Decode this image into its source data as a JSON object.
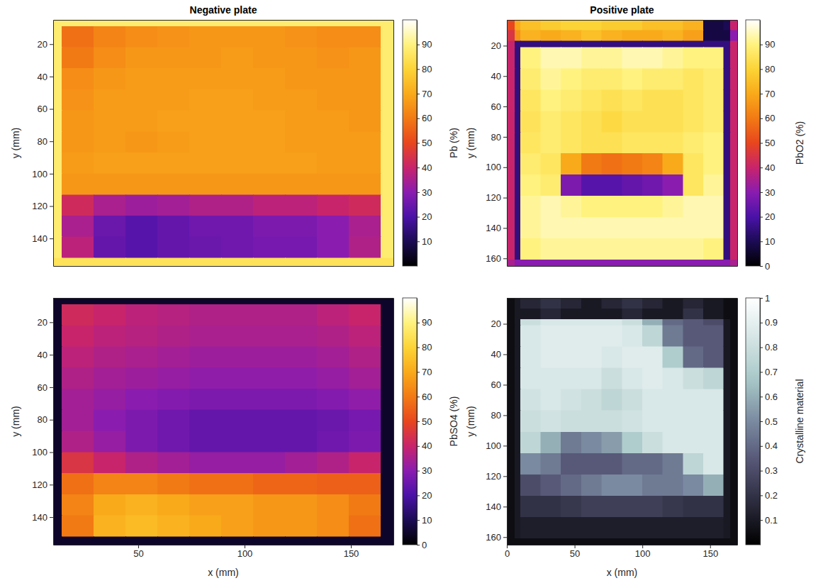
{
  "chart_data": [
    {
      "type": "heatmap",
      "title": "Negative plate",
      "y_label": "y (mm)",
      "tick_labels": "y",
      "color": "hot",
      "xlim": [
        10,
        170
      ],
      "ylim": [
        5,
        157
      ],
      "yticks": [
        20,
        40,
        60,
        80,
        100,
        120,
        140
      ],
      "x_edges": [
        10,
        14,
        29,
        44,
        59,
        74,
        89,
        104,
        119,
        134,
        149,
        164,
        170
      ],
      "y_edges": [
        5,
        9,
        22,
        35,
        48,
        61,
        74,
        87,
        100,
        113,
        126,
        139,
        152,
        157
      ],
      "z": [
        [
          88,
          88,
          88,
          88,
          88,
          88,
          88,
          88,
          88,
          88,
          88,
          88
        ],
        [
          88,
          58,
          62,
          64,
          65,
          66,
          66,
          66,
          65,
          64,
          64,
          88
        ],
        [
          88,
          60,
          64,
          66,
          66,
          66,
          67,
          66,
          66,
          65,
          66,
          88
        ],
        [
          88,
          64,
          66,
          67,
          67,
          67,
          67,
          67,
          66,
          66,
          66,
          88
        ],
        [
          88,
          65,
          67,
          67,
          67,
          68,
          68,
          67,
          67,
          66,
          66,
          88
        ],
        [
          88,
          66,
          67,
          67,
          68,
          68,
          68,
          68,
          67,
          67,
          66,
          88
        ],
        [
          88,
          66,
          67,
          66,
          67,
          68,
          68,
          68,
          67,
          67,
          67,
          88
        ],
        [
          88,
          67,
          68,
          68,
          68,
          68,
          68,
          68,
          68,
          67,
          67,
          88
        ],
        [
          88,
          66,
          66,
          66,
          66,
          66,
          66,
          66,
          66,
          66,
          66,
          88
        ],
        [
          88,
          42,
          35,
          33,
          34,
          36,
          36,
          38,
          38,
          40,
          42,
          88
        ],
        [
          88,
          35,
          25,
          22,
          24,
          26,
          26,
          28,
          28,
          30,
          35,
          88
        ],
        [
          88,
          38,
          24,
          22,
          24,
          25,
          26,
          27,
          27,
          30,
          36,
          88
        ],
        [
          85,
          85,
          85,
          85,
          85,
          85,
          85,
          85,
          85,
          85,
          85,
          85
        ]
      ],
      "colorbar": {
        "label": "Pb (%)",
        "range": [
          0,
          100
        ],
        "ticks": [
          10,
          20,
          30,
          40,
          50,
          60,
          70,
          80,
          90
        ]
      }
    },
    {
      "type": "heatmap",
      "title": "Positive plate",
      "y_label": "y (mm)",
      "tick_labels": "y",
      "color": "hot",
      "xlim": [
        0,
        170
      ],
      "ylim": [
        3,
        165
      ],
      "yticks": [
        20,
        40,
        60,
        80,
        100,
        120,
        140,
        160
      ],
      "x_edges": [
        0,
        6,
        10,
        25,
        40,
        55,
        70,
        85,
        100,
        115,
        130,
        145,
        160,
        165,
        170
      ],
      "y_edges": [
        3,
        10,
        17,
        21,
        35,
        49,
        63,
        77,
        91,
        105,
        119,
        133,
        147,
        161,
        165
      ],
      "z": [
        [
          50,
          70,
          75,
          78,
          80,
          80,
          78,
          78,
          75,
          75,
          72,
          8,
          10,
          40
        ],
        [
          45,
          65,
          72,
          70,
          72,
          75,
          72,
          70,
          70,
          72,
          68,
          8,
          8,
          30
        ],
        [
          40,
          15,
          15,
          15,
          15,
          15,
          15,
          15,
          15,
          15,
          15,
          15,
          15,
          40
        ],
        [
          40,
          15,
          90,
          94,
          94,
          92,
          92,
          94,
          94,
          92,
          90,
          90,
          15,
          40
        ],
        [
          40,
          15,
          88,
          92,
          90,
          88,
          88,
          90,
          88,
          88,
          86,
          88,
          15,
          40
        ],
        [
          40,
          15,
          86,
          90,
          88,
          86,
          84,
          86,
          84,
          84,
          86,
          88,
          15,
          40
        ],
        [
          40,
          15,
          85,
          88,
          86,
          84,
          82,
          84,
          84,
          84,
          86,
          88,
          15,
          40
        ],
        [
          40,
          15,
          86,
          88,
          86,
          84,
          84,
          86,
          86,
          86,
          88,
          90,
          15,
          40
        ],
        [
          40,
          15,
          88,
          86,
          70,
          60,
          58,
          60,
          62,
          70,
          86,
          90,
          15,
          40
        ],
        [
          40,
          15,
          90,
          88,
          28,
          22,
          22,
          24,
          26,
          30,
          86,
          92,
          15,
          40
        ],
        [
          40,
          15,
          92,
          94,
          92,
          90,
          90,
          90,
          90,
          92,
          94,
          94,
          15,
          40
        ],
        [
          40,
          15,
          92,
          94,
          94,
          94,
          94,
          94,
          94,
          94,
          94,
          94,
          15,
          40
        ],
        [
          40,
          15,
          90,
          92,
          92,
          92,
          92,
          92,
          92,
          92,
          92,
          90,
          15,
          40
        ],
        [
          35,
          30,
          30,
          30,
          30,
          30,
          30,
          30,
          30,
          30,
          30,
          30,
          30,
          35
        ]
      ],
      "colorbar": {
        "label": "PbO2 (%)",
        "range": [
          0,
          100
        ],
        "ticks": [
          0,
          10,
          20,
          30,
          40,
          50,
          60,
          70,
          80,
          90
        ]
      }
    },
    {
      "type": "heatmap",
      "x_label": "x (mm)",
      "y_label": "y (mm)",
      "color": "hot",
      "xlim": [
        10,
        170
      ],
      "ylim": [
        5,
        157
      ],
      "xticks": [
        50,
        100,
        150
      ],
      "yticks": [
        20,
        40,
        60,
        80,
        100,
        120,
        140
      ],
      "x_edges": [
        10,
        14,
        29,
        44,
        59,
        74,
        89,
        104,
        119,
        134,
        149,
        164,
        170
      ],
      "y_edges": [
        5,
        9,
        22,
        35,
        48,
        61,
        74,
        87,
        100,
        113,
        126,
        139,
        152,
        157
      ],
      "z": [
        [
          5,
          5,
          5,
          5,
          5,
          5,
          5,
          5,
          5,
          5,
          5,
          5
        ],
        [
          5,
          42,
          40,
          38,
          37,
          36,
          36,
          36,
          36,
          38,
          40,
          5
        ],
        [
          5,
          40,
          38,
          37,
          36,
          35,
          35,
          35,
          35,
          36,
          38,
          5
        ],
        [
          5,
          38,
          36,
          35,
          34,
          33,
          33,
          33,
          33,
          34,
          36,
          5
        ],
        [
          5,
          36,
          34,
          33,
          32,
          31,
          31,
          31,
          31,
          32,
          34,
          5
        ],
        [
          5,
          34,
          32,
          30,
          29,
          28,
          28,
          28,
          28,
          29,
          31,
          5
        ],
        [
          5,
          34,
          30,
          28,
          26,
          24,
          24,
          24,
          24,
          25,
          27,
          5
        ],
        [
          5,
          36,
          32,
          28,
          26,
          24,
          24,
          24,
          24,
          26,
          28,
          5
        ],
        [
          5,
          45,
          40,
          36,
          34,
          32,
          32,
          32,
          34,
          36,
          40,
          5
        ],
        [
          5,
          58,
          62,
          62,
          60,
          58,
          58,
          56,
          56,
          55,
          55,
          5
        ],
        [
          5,
          62,
          70,
          72,
          70,
          68,
          68,
          66,
          66,
          64,
          60,
          5
        ],
        [
          5,
          60,
          72,
          74,
          72,
          70,
          68,
          66,
          66,
          64,
          58,
          5
        ],
        [
          5,
          5,
          5,
          5,
          5,
          5,
          5,
          5,
          5,
          5,
          5,
          5
        ]
      ],
      "colorbar": {
        "label": "PbSO4 (%)",
        "range": [
          0,
          100
        ],
        "ticks": [
          0,
          10,
          20,
          30,
          40,
          50,
          60,
          70,
          80,
          90
        ]
      }
    },
    {
      "type": "heatmap",
      "x_label": "x (mm)",
      "y_label": "y (mm)",
      "color": "bone",
      "xlim": [
        0,
        170
      ],
      "ylim": [
        3,
        165
      ],
      "xticks": [
        0,
        50,
        100,
        150
      ],
      "yticks": [
        20,
        40,
        60,
        80,
        100,
        120,
        140,
        160
      ],
      "x_edges": [
        0,
        6,
        10,
        25,
        40,
        55,
        70,
        85,
        100,
        115,
        130,
        145,
        160,
        165,
        170
      ],
      "y_edges": [
        3,
        10,
        17,
        21,
        35,
        49,
        63,
        77,
        91,
        105,
        119,
        133,
        147,
        161,
        165
      ],
      "z": [
        [
          0.05,
          0.1,
          0.15,
          0.2,
          0.15,
          0.1,
          0.15,
          0.2,
          0.15,
          0.1,
          0.15,
          0.1,
          0.05,
          0.05
        ],
        [
          0.05,
          0.1,
          0.1,
          0.15,
          0.1,
          0.1,
          0.1,
          0.15,
          0.1,
          0.1,
          0.2,
          0.1,
          0.05,
          0.05
        ],
        [
          0.05,
          0.1,
          0.8,
          0.85,
          0.85,
          0.85,
          0.85,
          0.8,
          0.6,
          0.4,
          0.35,
          0.3,
          0.1,
          0.05
        ],
        [
          0.05,
          0.1,
          0.85,
          0.88,
          0.88,
          0.88,
          0.88,
          0.85,
          0.75,
          0.45,
          0.35,
          0.35,
          0.1,
          0.05
        ],
        [
          0.05,
          0.1,
          0.85,
          0.88,
          0.88,
          0.88,
          0.85,
          0.88,
          0.88,
          0.7,
          0.4,
          0.35,
          0.1,
          0.05
        ],
        [
          0.05,
          0.1,
          0.85,
          0.85,
          0.85,
          0.85,
          0.8,
          0.85,
          0.88,
          0.85,
          0.8,
          0.75,
          0.1,
          0.05
        ],
        [
          0.05,
          0.1,
          0.82,
          0.85,
          0.82,
          0.8,
          0.75,
          0.8,
          0.85,
          0.85,
          0.85,
          0.85,
          0.1,
          0.05
        ],
        [
          0.05,
          0.1,
          0.8,
          0.82,
          0.8,
          0.8,
          0.8,
          0.82,
          0.85,
          0.85,
          0.85,
          0.85,
          0.1,
          0.05
        ],
        [
          0.05,
          0.1,
          0.75,
          0.6,
          0.45,
          0.5,
          0.55,
          0.7,
          0.8,
          0.85,
          0.85,
          0.85,
          0.1,
          0.05
        ],
        [
          0.05,
          0.1,
          0.5,
          0.45,
          0.35,
          0.35,
          0.35,
          0.4,
          0.4,
          0.45,
          0.75,
          0.85,
          0.1,
          0.05
        ],
        [
          0.05,
          0.1,
          0.3,
          0.35,
          0.4,
          0.45,
          0.5,
          0.5,
          0.45,
          0.45,
          0.5,
          0.6,
          0.1,
          0.05
        ],
        [
          0.05,
          0.1,
          0.2,
          0.2,
          0.22,
          0.25,
          0.25,
          0.25,
          0.25,
          0.22,
          0.2,
          0.2,
          0.1,
          0.05
        ],
        [
          0.05,
          0.1,
          0.12,
          0.12,
          0.12,
          0.12,
          0.12,
          0.12,
          0.12,
          0.12,
          0.12,
          0.12,
          0.1,
          0.05
        ],
        [
          0.05,
          0.05,
          0.05,
          0.05,
          0.05,
          0.05,
          0.05,
          0.05,
          0.05,
          0.05,
          0.05,
          0.05,
          0.05,
          0.05
        ]
      ],
      "colorbar": {
        "label": "Crystalline material",
        "range": [
          0,
          1
        ],
        "ticks": [
          0.1,
          0.2,
          0.3,
          0.4,
          0.5,
          0.6,
          0.7,
          0.8,
          0.9,
          1
        ]
      }
    }
  ]
}
